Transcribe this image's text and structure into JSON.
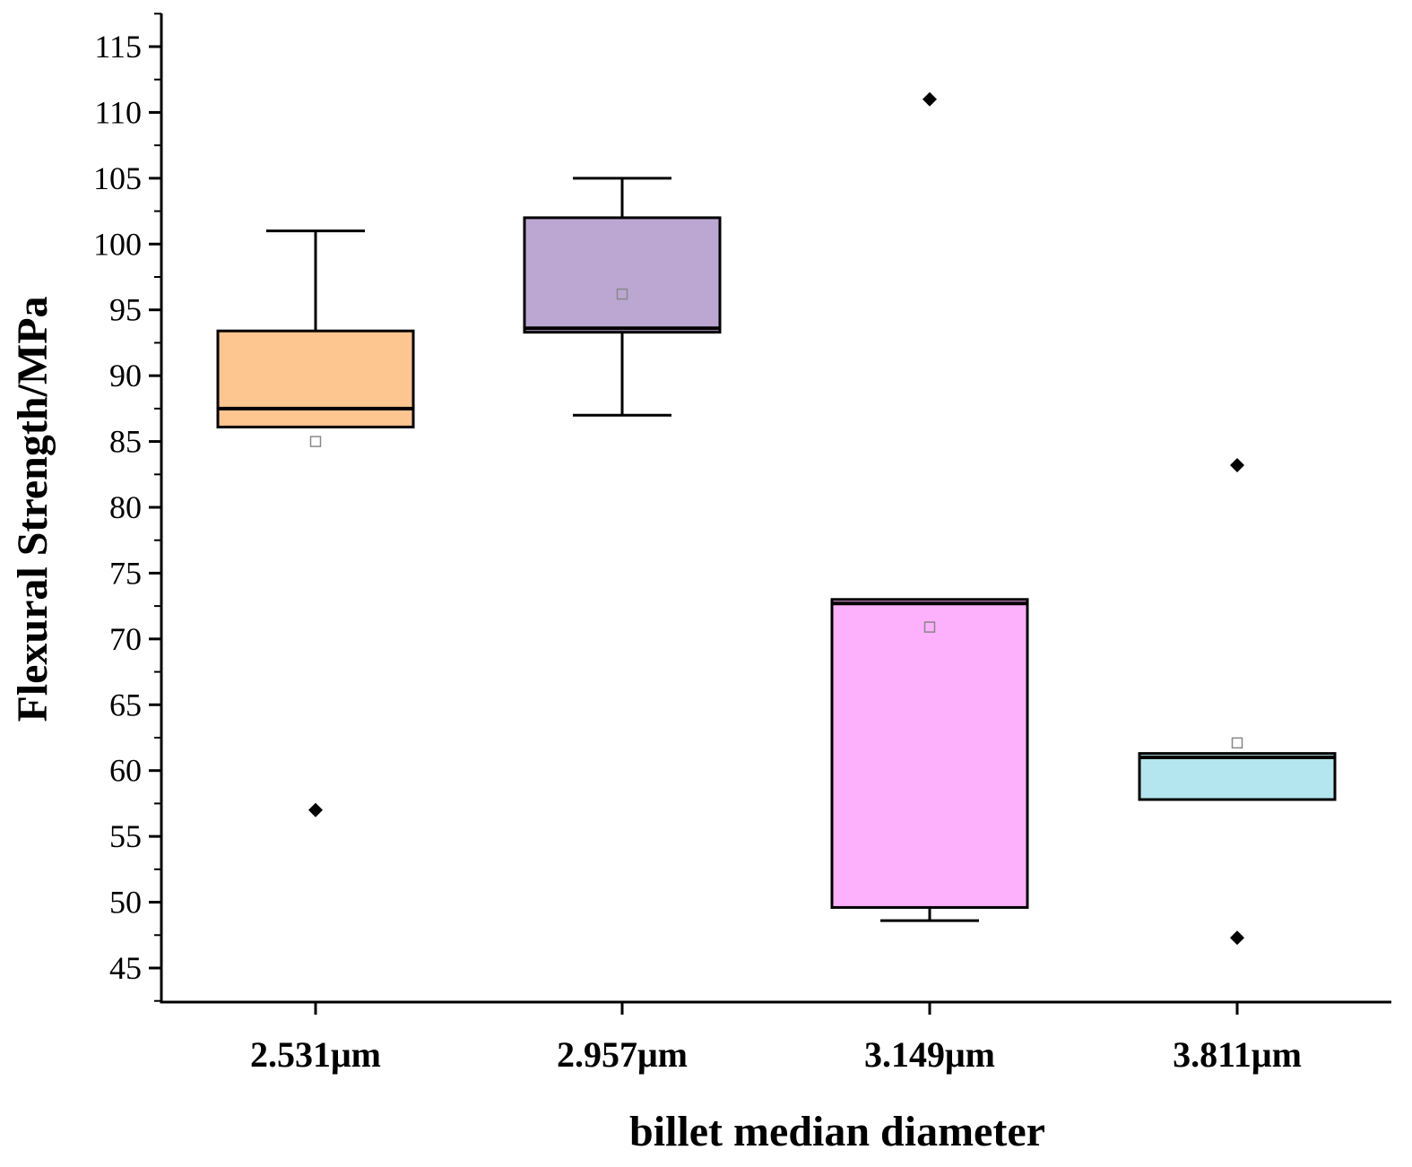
{
  "chart_data": {
    "type": "box",
    "xlabel": "billet median diameter",
    "ylabel": "Flexural Strength/MPa",
    "ylim": [
      42.5,
      117.5
    ],
    "yticks": [
      45,
      50,
      55,
      60,
      65,
      70,
      75,
      80,
      85,
      90,
      95,
      100,
      105,
      110,
      115
    ],
    "grid": false,
    "categories": [
      "2.531μm",
      "2.957μm",
      "3.149μm",
      "3.811μm"
    ],
    "boxes": [
      {
        "category": "2.531μm",
        "whisker_low": 86.1,
        "q1": 86.1,
        "median": 87.5,
        "q3": 93.4,
        "whisker_high": 101,
        "mean": 85,
        "outliers": [
          57
        ],
        "color": "#fdc58f"
      },
      {
        "category": "2.957μm",
        "whisker_low": 87,
        "q1": 93.3,
        "median": 93.6,
        "q3": 102,
        "whisker_high": 105,
        "mean": 96.2,
        "outliers": [],
        "color": "#bba7d2"
      },
      {
        "category": "3.149μm",
        "whisker_low": 48.6,
        "q1": 49.6,
        "median": 72.7,
        "q3": 73,
        "whisker_high": 73,
        "mean": 70.9,
        "outliers": [
          111
        ],
        "color": "#fdb0fb"
      },
      {
        "category": "3.811μm",
        "whisker_low": 57.8,
        "q1": 57.8,
        "median": 61,
        "q3": 61.3,
        "whisker_high": 61.3,
        "mean": 62.1,
        "outliers": [
          83.2,
          47.3
        ],
        "color": "#b3e6ee"
      }
    ]
  }
}
